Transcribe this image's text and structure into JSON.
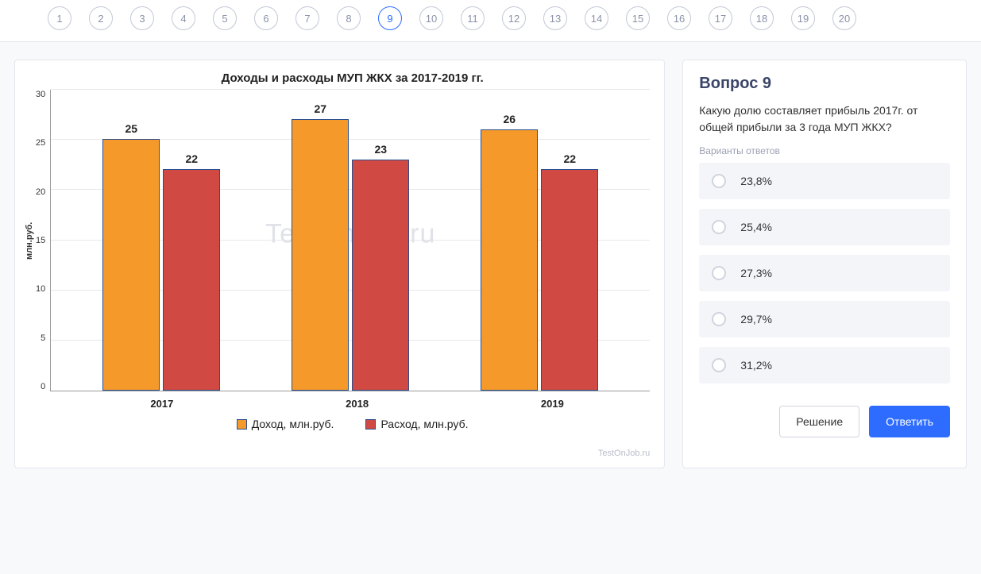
{
  "nav": {
    "items": [
      "1",
      "2",
      "3",
      "4",
      "5",
      "6",
      "7",
      "8",
      "9",
      "10",
      "11",
      "12",
      "13",
      "14",
      "15",
      "16",
      "17",
      "18",
      "19",
      "20"
    ],
    "active_index": 8
  },
  "chart": {
    "type": "bar",
    "title": "Доходы и расходы МУП ЖКХ за 2017-2019 гг.",
    "ylabel": "млн.руб.",
    "ylim": [
      0,
      30
    ],
    "ytick_step": 5,
    "yticks": [
      "30",
      "25",
      "20",
      "15",
      "10",
      "5",
      "0"
    ],
    "categories": [
      "2017",
      "2018",
      "2019"
    ],
    "series": [
      {
        "name": "Доход, млн.руб.",
        "color": "#f59a2a",
        "values": [
          25,
          27,
          26
        ]
      },
      {
        "name": "Расход, млн.руб.",
        "color": "#d04a43",
        "values": [
          22,
          23,
          22
        ]
      }
    ],
    "bar_border_color": "#2a4e8f",
    "grid_color": "#e8e8e8",
    "background_color": "#ffffff",
    "title_fontsize": 15,
    "label_fontsize": 11,
    "watermark_big": "TestOnJob.ru",
    "watermark_small": "TestOnJob.ru"
  },
  "question": {
    "title": "Вопрос 9",
    "text": "Какую долю составляет прибыль 2017г. от общей прибыли за 3 года МУП ЖКХ?",
    "options_label": "Варианты ответов",
    "options": [
      "23,8%",
      "25,4%",
      "27,3%",
      "29,7%",
      "31,2%"
    ],
    "btn_solution": "Решение",
    "btn_answer": "Ответить"
  },
  "colors": {
    "accent": "#2d6cff",
    "panel_border": "#e4e7ee",
    "bg": "#f8f9fb"
  }
}
